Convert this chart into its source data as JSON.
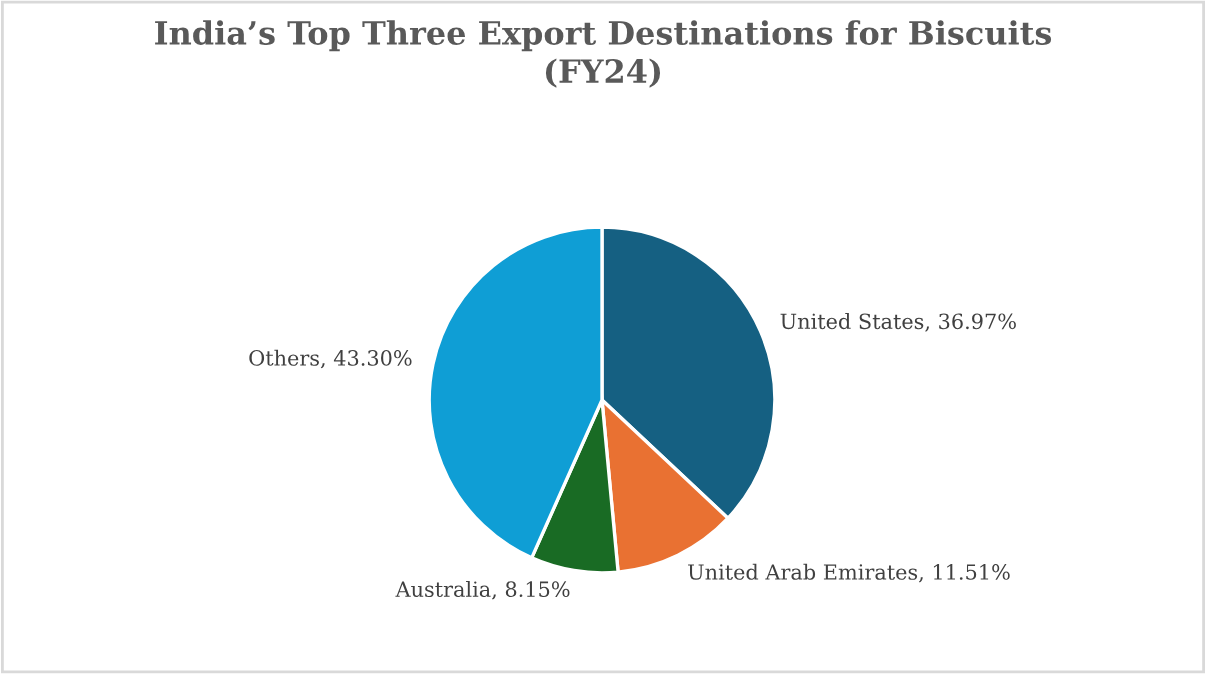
{
  "chart_data": {
    "type": "pie",
    "title": "India’s Top Three Export Destinations for Biscuits\n(FY24)",
    "categories": [
      "United States",
      "United Arab Emirates",
      "Australia",
      "Others"
    ],
    "values": [
      36.97,
      11.51,
      8.15,
      43.3
    ],
    "value_labels": [
      "36.97%",
      "11.51%",
      "8.15%",
      "43.30%"
    ],
    "colors": [
      "#156082",
      "#e97132",
      "#196b24",
      "#0f9ed5"
    ],
    "legend": false
  }
}
